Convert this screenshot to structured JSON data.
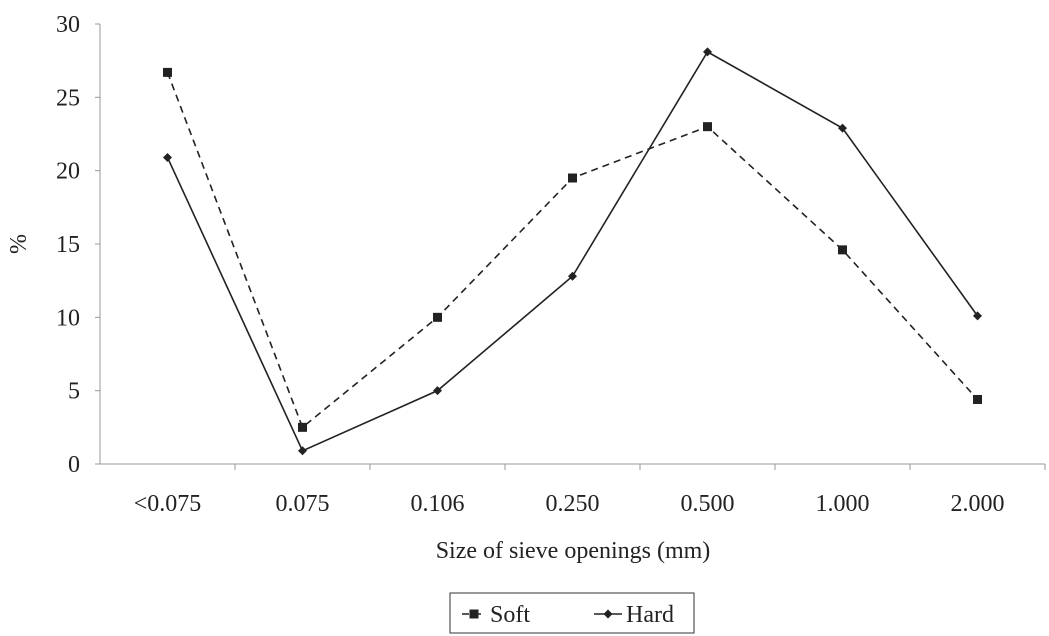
{
  "chart_data": {
    "type": "line",
    "title": "",
    "xlabel": "Size of sieve openings (mm)",
    "ylabel": "%",
    "categories": [
      "<0.075",
      "0.075",
      "0.106",
      "0.250",
      "0.500",
      "1.000",
      "2.000"
    ],
    "ylim": [
      0,
      30
    ],
    "yticks": [
      0,
      5,
      10,
      15,
      20,
      25,
      30
    ],
    "grid": false,
    "legend_position": "bottom",
    "series": [
      {
        "name": "Soft",
        "values": [
          26.7,
          2.5,
          10.0,
          19.5,
          23.0,
          14.6,
          4.4
        ],
        "line_style": "dashed",
        "marker": "square",
        "color": "#222222"
      },
      {
        "name": "Hard",
        "values": [
          20.9,
          0.9,
          5.0,
          12.8,
          28.1,
          22.9,
          10.1
        ],
        "line_style": "solid",
        "marker": "diamond",
        "color": "#222222"
      }
    ]
  }
}
